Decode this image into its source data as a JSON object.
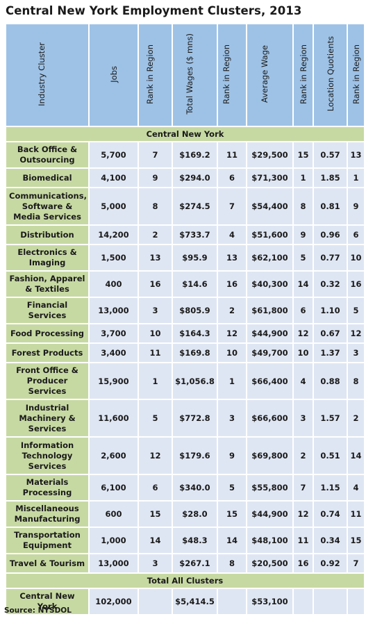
{
  "title": "Central New York Employment Clusters, 2013",
  "headers": [
    "Industry Cluster",
    "Jobs",
    "Rank in Region",
    "Total Wages ($ mns)",
    "Rank in Region",
    "Average Wage",
    "Rank in Region",
    "Location Quotients",
    "Rank in Region"
  ],
  "section_label": "Central New York",
  "rows": [
    {
      "name": "Back Office & Outsourcing",
      "jobs": "5,700",
      "jobs_rank": "7",
      "wages": "$169.2",
      "wages_rank": "11",
      "avg_wage": "$29,500",
      "avg_rank": "15",
      "lq": "0.57",
      "lq_rank": "13"
    },
    {
      "name": "Biomedical",
      "jobs": "4,100",
      "jobs_rank": "9",
      "wages": "$294.0",
      "wages_rank": "6",
      "avg_wage": "$71,300",
      "avg_rank": "1",
      "lq": "1.85",
      "lq_rank": "1"
    },
    {
      "name": "Communications, Software & Media Services",
      "jobs": "5,000",
      "jobs_rank": "8",
      "wages": "$274.5",
      "wages_rank": "7",
      "avg_wage": "$54,400",
      "avg_rank": "8",
      "lq": "0.81",
      "lq_rank": "9"
    },
    {
      "name": "Distribution",
      "jobs": "14,200",
      "jobs_rank": "2",
      "wages": "$733.7",
      "wages_rank": "4",
      "avg_wage": "$51,600",
      "avg_rank": "9",
      "lq": "0.96",
      "lq_rank": "6"
    },
    {
      "name": "Electronics & Imaging",
      "jobs": "1,500",
      "jobs_rank": "13",
      "wages": "$95.9",
      "wages_rank": "13",
      "avg_wage": "$62,100",
      "avg_rank": "5",
      "lq": "0.77",
      "lq_rank": "10"
    },
    {
      "name": "Fashion, Apparel & Textiles",
      "jobs": "400",
      "jobs_rank": "16",
      "wages": "$14.6",
      "wages_rank": "16",
      "avg_wage": "$40,300",
      "avg_rank": "14",
      "lq": "0.32",
      "lq_rank": "16"
    },
    {
      "name": "Financial Services",
      "jobs": "13,000",
      "jobs_rank": "3",
      "wages": "$805.9",
      "wages_rank": "2",
      "avg_wage": "$61,800",
      "avg_rank": "6",
      "lq": "1.10",
      "lq_rank": "5"
    },
    {
      "name": "Food Processing",
      "jobs": "3,700",
      "jobs_rank": "10",
      "wages": "$164.3",
      "wages_rank": "12",
      "avg_wage": "$44,900",
      "avg_rank": "12",
      "lq": "0.67",
      "lq_rank": "12"
    },
    {
      "name": "Forest Products",
      "jobs": "3,400",
      "jobs_rank": "11",
      "wages": "$169.8",
      "wages_rank": "10",
      "avg_wage": "$49,700",
      "avg_rank": "10",
      "lq": "1.37",
      "lq_rank": "3"
    },
    {
      "name": "Front Office & Producer Services",
      "jobs": "15,900",
      "jobs_rank": "1",
      "wages": "$1,056.8",
      "wages_rank": "1",
      "avg_wage": "$66,400",
      "avg_rank": "4",
      "lq": "0.88",
      "lq_rank": "8"
    },
    {
      "name": "Industrial Machinery & Services",
      "jobs": "11,600",
      "jobs_rank": "5",
      "wages": "$772.8",
      "wages_rank": "3",
      "avg_wage": "$66,600",
      "avg_rank": "3",
      "lq": "1.57",
      "lq_rank": "2"
    },
    {
      "name": "Information Technology Services",
      "jobs": "2,600",
      "jobs_rank": "12",
      "wages": "$179.6",
      "wages_rank": "9",
      "avg_wage": "$69,800",
      "avg_rank": "2",
      "lq": "0.51",
      "lq_rank": "14"
    },
    {
      "name": "Materials Processing",
      "jobs": "6,100",
      "jobs_rank": "6",
      "wages": "$340.0",
      "wages_rank": "5",
      "avg_wage": "$55,800",
      "avg_rank": "7",
      "lq": "1.15",
      "lq_rank": "4"
    },
    {
      "name": "Miscellaneous Manufacturing",
      "jobs": "600",
      "jobs_rank": "15",
      "wages": "$28.0",
      "wages_rank": "15",
      "avg_wage": "$44,900",
      "avg_rank": "12",
      "lq": "0.74",
      "lq_rank": "11"
    },
    {
      "name": "Transportation Equipment",
      "jobs": "1,000",
      "jobs_rank": "14",
      "wages": "$48.3",
      "wages_rank": "14",
      "avg_wage": "$48,100",
      "avg_rank": "11",
      "lq": "0.34",
      "lq_rank": "15"
    },
    {
      "name": "Travel & Tourism",
      "jobs": "13,000",
      "jobs_rank": "3",
      "wages": "$267.1",
      "wages_rank": "8",
      "avg_wage": "$20,500",
      "avg_rank": "16",
      "lq": "0.92",
      "lq_rank": "7"
    }
  ],
  "total_label": "Total All Clusters",
  "total_row": {
    "name": "Central New York",
    "jobs": "102,000",
    "jobs_rank": "",
    "wages": "$5,414.5",
    "wages_rank": "",
    "avg_wage": "$53,100",
    "avg_rank": "",
    "lq": "",
    "lq_rank": ""
  },
  "source": "Source: NYSDOL",
  "colors": {
    "header": "#9ec2e6",
    "label_cells": "#c7d9a3",
    "value_cells": "#dfe6f3"
  }
}
